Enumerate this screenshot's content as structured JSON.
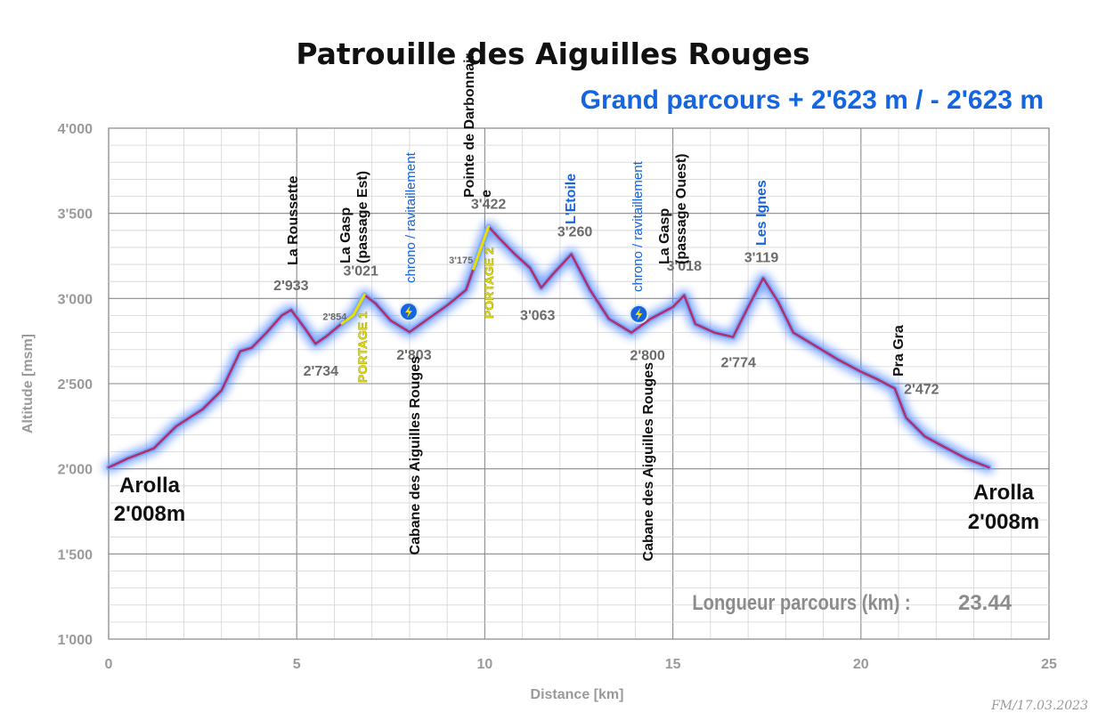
{
  "chart_data": {
    "type": "area",
    "title": "Patrouille des Aiguilles Rouges",
    "subtitle": "Grand parcours  + 2'623 m / - 2'623 m",
    "xlabel": "Distance [km]",
    "ylabel": "Altitude [msm]",
    "xlim": [
      0,
      25
    ],
    "ylim": [
      1000,
      4000
    ],
    "x_ticks": [
      "0",
      "5",
      "10",
      "15",
      "20",
      "25"
    ],
    "y_ticks": [
      "1'000",
      "1'500",
      "2'000",
      "2'500",
      "3'000",
      "3'500",
      "4'000"
    ],
    "grid": true,
    "profile": {
      "x": [
        0,
        0.5,
        1.2,
        1.8,
        2.5,
        3.0,
        3.5,
        3.8,
        4.2,
        4.6,
        4.85,
        5.2,
        5.5,
        5.8,
        6.2,
        6.5,
        6.8,
        7.1,
        7.5,
        8.0,
        8.3,
        9.0,
        9.5,
        9.7,
        10.1,
        10.4,
        10.8,
        11.2,
        11.5,
        11.8,
        12.3,
        12.8,
        13.3,
        13.9,
        14.4,
        15.0,
        15.3,
        15.6,
        16.1,
        16.6,
        17.0,
        17.4,
        17.8,
        18.2,
        18.8,
        19.4,
        20.0,
        20.4,
        20.9,
        21.2,
        21.7,
        22.2,
        22.8,
        23.4
      ],
      "y": [
        2008,
        2060,
        2120,
        2250,
        2350,
        2460,
        2690,
        2710,
        2800,
        2900,
        2933,
        2830,
        2734,
        2780,
        2854,
        2900,
        3021,
        2970,
        2870,
        2803,
        2850,
        2960,
        3050,
        3175,
        3422,
        3350,
        3260,
        3180,
        3063,
        3140,
        3260,
        3050,
        2880,
        2800,
        2880,
        2950,
        3018,
        2850,
        2800,
        2774,
        2950,
        3119,
        2980,
        2800,
        2720,
        2640,
        2570,
        2530,
        2472,
        2300,
        2190,
        2130,
        2060,
        2008
      ]
    },
    "portage_segments": [
      {
        "label": "PORTAGE 1",
        "x_range": [
          6.2,
          6.8
        ]
      },
      {
        "label": "PORTAGE 2",
        "x_range": [
          9.7,
          10.1
        ]
      }
    ],
    "annotations": [
      {
        "name": "La Roussette",
        "x": 4.85,
        "altitude": "2'933",
        "color": "black"
      },
      {
        "name": "",
        "x": 5.5,
        "altitude": "2'734",
        "color": "black"
      },
      {
        "name": "",
        "x": 6.2,
        "altitude": "2'854",
        "color": "black",
        "small": true
      },
      {
        "name": "La Gasp (passage Est)",
        "x": 6.8,
        "altitude": "3'021",
        "color": "black"
      },
      {
        "name": "Cabane des Aiguilles Rouges",
        "x": 8.0,
        "altitude": "2'803",
        "color": "black"
      },
      {
        "name": "",
        "x": 9.7,
        "altitude": "3'175",
        "color": "black",
        "small": true
      },
      {
        "name": "Pointe de Darbonnaire",
        "x": 10.1,
        "altitude": "3'422",
        "color": "black"
      },
      {
        "name": "",
        "x": 11.5,
        "altitude": "3'063",
        "color": "black"
      },
      {
        "name": "L'Etoile",
        "x": 12.3,
        "altitude": "3'260",
        "color": "blue"
      },
      {
        "name": "Cabane des Aiguilles Rouges",
        "x": 13.9,
        "altitude": "2'800",
        "color": "black"
      },
      {
        "name": "La Gasp (passage Ouest)",
        "x": 15.3,
        "altitude": "3'018",
        "color": "black"
      },
      {
        "name": "",
        "x": 16.6,
        "altitude": "2'774",
        "color": "black"
      },
      {
        "name": "Les Ignes",
        "x": 17.4,
        "altitude": "3'119",
        "color": "blue"
      },
      {
        "name": "Pra Gra",
        "x": 20.9,
        "altitude": "2'472",
        "color": "black"
      }
    ],
    "chrono_points": [
      {
        "label": "chrono / ravitaillement",
        "x": 8.0,
        "y": 2980
      },
      {
        "label": "chrono / ravitaillement",
        "x": 14.0,
        "y": 2950
      }
    ],
    "start": {
      "name": "Arolla",
      "altitude": "2'008m"
    },
    "finish": {
      "name": "Arolla",
      "altitude": "2'008m"
    },
    "length_label": "Longueur parcours (km) :",
    "length_value": "23.44",
    "credit": "FM/17.03.2023",
    "colors": {
      "line": "#b0306a",
      "glow": "#4d86ff",
      "portage": "#e8e000",
      "subtitle": "#1565e0",
      "grid_major": "#8a8a8a",
      "grid_minor": "#d4d4d4"
    }
  }
}
